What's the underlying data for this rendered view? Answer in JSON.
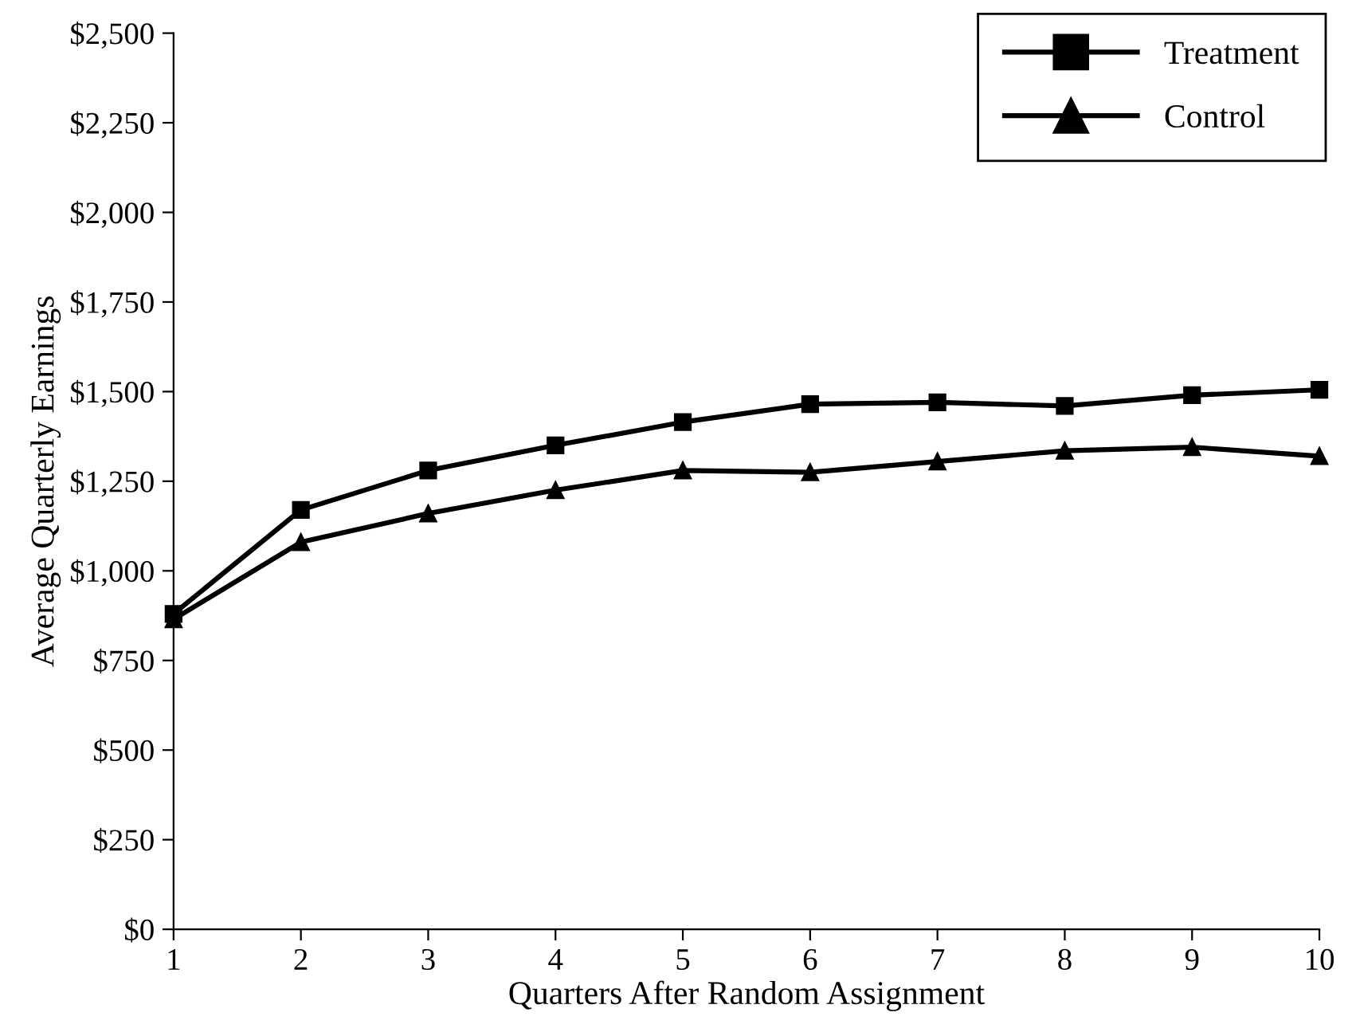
{
  "chart_data": {
    "type": "line",
    "xlabel": "Quarters After Random Assignment",
    "ylabel": "Average Quarterly Earnings",
    "x": [
      1,
      2,
      3,
      4,
      5,
      6,
      7,
      8,
      9,
      10
    ],
    "series": [
      {
        "name": "Treatment",
        "color": "#000000",
        "marker": "square",
        "values": [
          880,
          1170,
          1280,
          1350,
          1415,
          1465,
          1470,
          1460,
          1490,
          1505
        ]
      },
      {
        "name": "Control",
        "color": "#000000",
        "marker": "triangle",
        "values": [
          865,
          1080,
          1160,
          1225,
          1280,
          1275,
          1305,
          1335,
          1345,
          1320
        ]
      }
    ],
    "xlim": [
      1,
      10
    ],
    "xticks": [
      1,
      2,
      3,
      4,
      5,
      6,
      7,
      8,
      9,
      10
    ],
    "ylim": [
      0,
      2500
    ],
    "yticks": [
      {
        "value": 0,
        "label": "$0"
      },
      {
        "value": 250,
        "label": "$250"
      },
      {
        "value": 500,
        "label": "$500"
      },
      {
        "value": 750,
        "label": "$750"
      },
      {
        "value": 1000,
        "label": "$1,000"
      },
      {
        "value": 1250,
        "label": "$1,250"
      },
      {
        "value": 1500,
        "label": "$1,500"
      },
      {
        "value": 1750,
        "label": "$1,750"
      },
      {
        "value": 2000,
        "label": "$2,000"
      },
      {
        "value": 2250,
        "label": "$2,250"
      },
      {
        "value": 2500,
        "label": "$2,500"
      }
    ],
    "grid": false,
    "legend": "top right",
    "line_style": "solid"
  }
}
